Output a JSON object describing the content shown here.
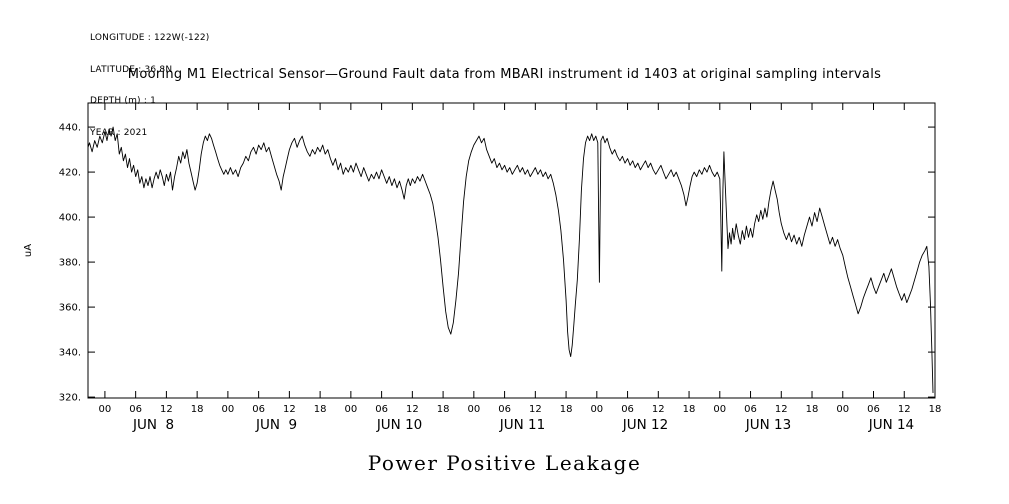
{
  "meta": {
    "longitude": "LONGITUDE : 122W(-122)",
    "latitude": "LATITUDE : 36.8N",
    "depth": "DEPTH (m) : 1",
    "year": "YEAR : 2021"
  },
  "title": "Mooring M1 Electrical Sensor—Ground Fault data from MBARI instrument id 1403 at original sampling intervals",
  "caption": "Power Positive Leakage",
  "chart_data": {
    "type": "line",
    "title": "Mooring M1 Electrical Sensor—Ground Fault data from MBARI instrument id 1403 at original sampling intervals",
    "xlabel_caption": "Power Positive Leakage",
    "ylabel": "uA",
    "line_color": "#000000",
    "grid": false,
    "legend": "none",
    "ylim": [
      319.6,
      450.7
    ],
    "xlim_hours": [
      -3.3,
      162
    ],
    "x_epoch": "hours since JUN 8 2021 00:00",
    "x_tick_step": 6,
    "x_tick_labels_cycle": [
      "00",
      "06",
      "12",
      "18"
    ],
    "y_ticks": [
      320,
      340,
      360,
      380,
      400,
      420,
      440
    ],
    "y_tick_labels": [
      "320.",
      "340.",
      "360.",
      "380.",
      "400.",
      "420.",
      "440."
    ],
    "day_labels": [
      {
        "label": "JUN  8",
        "hour": 9.5
      },
      {
        "label": "JUN  9",
        "hour": 33.5
      },
      {
        "label": "JUN 10",
        "hour": 57.5
      },
      {
        "label": "JUN 11",
        "hour": 81.5
      },
      {
        "label": "JUN 12",
        "hour": 105.5
      },
      {
        "label": "JUN 13",
        "hour": 129.5
      },
      {
        "label": "JUN 14",
        "hour": 153.5
      }
    ],
    "points": [
      [
        -3.3,
        431
      ],
      [
        -3,
        433
      ],
      [
        -2.5,
        429
      ],
      [
        -2,
        434
      ],
      [
        -1.5,
        431
      ],
      [
        -1,
        436
      ],
      [
        -0.5,
        433
      ],
      [
        0,
        438
      ],
      [
        0.4,
        434
      ],
      [
        0.8,
        439
      ],
      [
        1.2,
        436
      ],
      [
        1.6,
        440
      ],
      [
        2,
        434
      ],
      [
        2.4,
        437
      ],
      [
        2.8,
        428
      ],
      [
        3.2,
        431
      ],
      [
        3.6,
        425
      ],
      [
        4,
        428
      ],
      [
        4.4,
        422
      ],
      [
        4.8,
        426
      ],
      [
        5.2,
        420
      ],
      [
        5.6,
        423
      ],
      [
        6,
        418
      ],
      [
        6.4,
        421
      ],
      [
        6.8,
        415
      ],
      [
        7.2,
        418
      ],
      [
        7.6,
        413
      ],
      [
        8,
        417
      ],
      [
        8.4,
        414
      ],
      [
        8.8,
        418
      ],
      [
        9.2,
        413
      ],
      [
        9.6,
        417
      ],
      [
        10,
        420
      ],
      [
        10.4,
        417
      ],
      [
        10.8,
        421
      ],
      [
        11.2,
        418
      ],
      [
        11.6,
        414
      ],
      [
        12,
        419
      ],
      [
        12.4,
        416
      ],
      [
        12.8,
        420
      ],
      [
        13.2,
        412
      ],
      [
        13.6,
        418
      ],
      [
        14,
        422
      ],
      [
        14.4,
        427
      ],
      [
        14.8,
        424
      ],
      [
        15.2,
        429
      ],
      [
        15.6,
        426
      ],
      [
        16,
        430
      ],
      [
        16.4,
        424
      ],
      [
        16.8,
        420
      ],
      [
        17.2,
        416
      ],
      [
        17.6,
        412
      ],
      [
        18,
        415
      ],
      [
        18.4,
        421
      ],
      [
        18.8,
        428
      ],
      [
        19.2,
        433
      ],
      [
        19.6,
        436
      ],
      [
        20,
        434
      ],
      [
        20.4,
        437
      ],
      [
        20.8,
        435
      ],
      [
        21.2,
        432
      ],
      [
        21.6,
        429
      ],
      [
        22,
        426
      ],
      [
        22.4,
        423
      ],
      [
        22.8,
        421
      ],
      [
        23.2,
        419
      ],
      [
        23.6,
        421
      ],
      [
        24,
        419
      ],
      [
        24.5,
        422
      ],
      [
        25,
        419
      ],
      [
        25.5,
        421
      ],
      [
        26,
        418
      ],
      [
        26.5,
        422
      ],
      [
        27,
        424
      ],
      [
        27.5,
        427
      ],
      [
        28,
        425
      ],
      [
        28.5,
        429
      ],
      [
        29,
        431
      ],
      [
        29.5,
        428
      ],
      [
        30,
        432
      ],
      [
        30.5,
        430
      ],
      [
        31,
        433
      ],
      [
        31.5,
        429
      ],
      [
        32,
        431
      ],
      [
        32.5,
        427
      ],
      [
        33,
        423
      ],
      [
        33.5,
        419
      ],
      [
        34,
        416
      ],
      [
        34.4,
        412
      ],
      [
        34.8,
        418
      ],
      [
        35.2,
        422
      ],
      [
        35.6,
        426
      ],
      [
        36,
        430
      ],
      [
        36.5,
        433
      ],
      [
        37,
        435
      ],
      [
        37.5,
        431
      ],
      [
        38,
        434
      ],
      [
        38.5,
        436
      ],
      [
        39,
        432
      ],
      [
        39.5,
        429
      ],
      [
        40,
        427
      ],
      [
        40.5,
        430
      ],
      [
        41,
        428
      ],
      [
        41.5,
        431
      ],
      [
        42,
        429
      ],
      [
        42.5,
        432
      ],
      [
        43,
        428
      ],
      [
        43.5,
        430
      ],
      [
        44,
        426
      ],
      [
        44.5,
        423
      ],
      [
        45,
        426
      ],
      [
        45.5,
        421
      ],
      [
        46,
        424
      ],
      [
        46.5,
        419
      ],
      [
        47,
        422
      ],
      [
        47.5,
        420
      ],
      [
        48,
        423
      ],
      [
        48.5,
        420
      ],
      [
        49,
        424
      ],
      [
        49.5,
        421
      ],
      [
        50,
        418
      ],
      [
        50.5,
        422
      ],
      [
        51,
        419
      ],
      [
        51.5,
        416
      ],
      [
        52,
        419
      ],
      [
        52.5,
        417
      ],
      [
        53,
        420
      ],
      [
        53.5,
        417
      ],
      [
        54,
        421
      ],
      [
        54.5,
        418
      ],
      [
        55,
        415
      ],
      [
        55.5,
        418
      ],
      [
        56,
        414
      ],
      [
        56.5,
        417
      ],
      [
        57,
        413
      ],
      [
        57.5,
        416
      ],
      [
        58,
        412
      ],
      [
        58.4,
        408
      ],
      [
        58.8,
        414
      ],
      [
        59.2,
        417
      ],
      [
        59.6,
        414
      ],
      [
        60,
        417
      ],
      [
        60.5,
        415
      ],
      [
        61,
        418
      ],
      [
        61.5,
        416
      ],
      [
        62,
        419
      ],
      [
        62.5,
        416
      ],
      [
        63,
        413
      ],
      [
        63.5,
        410
      ],
      [
        64,
        406
      ],
      [
        64.5,
        399
      ],
      [
        65,
        391
      ],
      [
        65.5,
        381
      ],
      [
        66,
        369
      ],
      [
        66.5,
        358
      ],
      [
        67,
        351
      ],
      [
        67.5,
        348
      ],
      [
        68,
        353
      ],
      [
        68.5,
        363
      ],
      [
        69,
        375
      ],
      [
        69.5,
        391
      ],
      [
        70,
        407
      ],
      [
        70.5,
        418
      ],
      [
        71,
        425
      ],
      [
        71.5,
        429
      ],
      [
        72,
        432
      ],
      [
        72.5,
        434
      ],
      [
        73,
        436
      ],
      [
        73.5,
        433
      ],
      [
        74,
        435
      ],
      [
        74.5,
        430
      ],
      [
        75,
        427
      ],
      [
        75.5,
        424
      ],
      [
        76,
        426
      ],
      [
        76.5,
        422
      ],
      [
        77,
        424
      ],
      [
        77.5,
        421
      ],
      [
        78,
        423
      ],
      [
        78.5,
        420
      ],
      [
        79,
        422
      ],
      [
        79.5,
        419
      ],
      [
        80,
        421
      ],
      [
        80.5,
        423
      ],
      [
        81,
        420
      ],
      [
        81.5,
        422
      ],
      [
        82,
        419
      ],
      [
        82.5,
        421
      ],
      [
        83,
        418
      ],
      [
        83.5,
        420
      ],
      [
        84,
        422
      ],
      [
        84.5,
        419
      ],
      [
        85,
        421
      ],
      [
        85.5,
        418
      ],
      [
        86,
        420
      ],
      [
        86.5,
        417
      ],
      [
        87,
        419
      ],
      [
        87.5,
        415
      ],
      [
        88,
        410
      ],
      [
        88.5,
        403
      ],
      [
        89,
        394
      ],
      [
        89.5,
        381
      ],
      [
        90,
        363
      ],
      [
        90.3,
        349
      ],
      [
        90.6,
        341
      ],
      [
        90.9,
        338
      ],
      [
        91.2,
        343
      ],
      [
        91.5,
        352
      ],
      [
        91.8,
        361
      ],
      [
        92.2,
        372
      ],
      [
        92.6,
        390
      ],
      [
        93,
        412
      ],
      [
        93.4,
        426
      ],
      [
        93.8,
        433
      ],
      [
        94.2,
        436
      ],
      [
        94.6,
        434
      ],
      [
        95,
        437
      ],
      [
        95.4,
        434
      ],
      [
        95.8,
        436
      ],
      [
        96.2,
        433
      ],
      [
        96.5,
        371
      ],
      [
        96.8,
        434
      ],
      [
        97.2,
        436
      ],
      [
        97.6,
        433
      ],
      [
        98,
        435
      ],
      [
        98.5,
        431
      ],
      [
        99,
        428
      ],
      [
        99.5,
        430
      ],
      [
        100,
        427
      ],
      [
        100.5,
        425
      ],
      [
        101,
        427
      ],
      [
        101.5,
        424
      ],
      [
        102,
        426
      ],
      [
        102.5,
        423
      ],
      [
        103,
        425
      ],
      [
        103.5,
        422
      ],
      [
        104,
        424
      ],
      [
        104.5,
        421
      ],
      [
        105,
        423
      ],
      [
        105.5,
        425
      ],
      [
        106,
        422
      ],
      [
        106.5,
        424
      ],
      [
        107,
        421
      ],
      [
        107.5,
        419
      ],
      [
        108,
        421
      ],
      [
        108.5,
        423
      ],
      [
        109,
        420
      ],
      [
        109.5,
        417
      ],
      [
        110,
        419
      ],
      [
        110.5,
        421
      ],
      [
        111,
        418
      ],
      [
        111.5,
        420
      ],
      [
        112,
        417
      ],
      [
        112.5,
        414
      ],
      [
        113,
        410
      ],
      [
        113.4,
        405
      ],
      [
        113.8,
        409
      ],
      [
        114.2,
        414
      ],
      [
        114.6,
        418
      ],
      [
        115,
        420
      ],
      [
        115.5,
        418
      ],
      [
        116,
        421
      ],
      [
        116.5,
        419
      ],
      [
        117,
        422
      ],
      [
        117.5,
        420
      ],
      [
        118,
        423
      ],
      [
        118.5,
        420
      ],
      [
        119,
        418
      ],
      [
        119.5,
        420
      ],
      [
        120,
        417
      ],
      [
        120.2,
        400
      ],
      [
        120.4,
        376
      ],
      [
        120.6,
        412
      ],
      [
        120.8,
        429
      ],
      [
        121,
        418
      ],
      [
        121.3,
        401
      ],
      [
        121.6,
        386
      ],
      [
        121.9,
        393
      ],
      [
        122.2,
        388
      ],
      [
        122.5,
        395
      ],
      [
        122.8,
        390
      ],
      [
        123.2,
        397
      ],
      [
        123.6,
        392
      ],
      [
        124,
        388
      ],
      [
        124.4,
        394
      ],
      [
        124.8,
        390
      ],
      [
        125.2,
        396
      ],
      [
        125.6,
        391
      ],
      [
        126,
        395
      ],
      [
        126.4,
        391
      ],
      [
        126.8,
        397
      ],
      [
        127.2,
        401
      ],
      [
        127.6,
        398
      ],
      [
        128,
        403
      ],
      [
        128.4,
        399
      ],
      [
        128.8,
        404
      ],
      [
        129.2,
        400
      ],
      [
        129.6,
        407
      ],
      [
        130,
        412
      ],
      [
        130.4,
        416
      ],
      [
        130.8,
        412
      ],
      [
        131.2,
        408
      ],
      [
        131.6,
        402
      ],
      [
        132,
        397
      ],
      [
        132.5,
        393
      ],
      [
        133,
        390
      ],
      [
        133.5,
        393
      ],
      [
        134,
        389
      ],
      [
        134.5,
        392
      ],
      [
        135,
        388
      ],
      [
        135.5,
        391
      ],
      [
        136,
        387
      ],
      [
        136.5,
        392
      ],
      [
        137,
        396
      ],
      [
        137.5,
        400
      ],
      [
        138,
        396
      ],
      [
        138.5,
        402
      ],
      [
        139,
        398
      ],
      [
        139.5,
        404
      ],
      [
        140,
        400
      ],
      [
        140.5,
        396
      ],
      [
        141,
        392
      ],
      [
        141.5,
        388
      ],
      [
        142,
        391
      ],
      [
        142.5,
        387
      ],
      [
        143,
        390
      ],
      [
        143.5,
        386
      ],
      [
        144,
        383
      ],
      [
        144.5,
        378
      ],
      [
        145,
        373
      ],
      [
        145.5,
        369
      ],
      [
        146,
        365
      ],
      [
        146.5,
        361
      ],
      [
        147,
        357
      ],
      [
        147.5,
        360
      ],
      [
        148,
        364
      ],
      [
        148.5,
        367
      ],
      [
        149,
        370
      ],
      [
        149.5,
        373
      ],
      [
        150,
        369
      ],
      [
        150.5,
        366
      ],
      [
        151,
        369
      ],
      [
        151.5,
        372
      ],
      [
        152,
        375
      ],
      [
        152.5,
        371
      ],
      [
        153,
        374
      ],
      [
        153.5,
        377
      ],
      [
        154,
        373
      ],
      [
        154.5,
        369
      ],
      [
        155,
        366
      ],
      [
        155.5,
        363
      ],
      [
        156,
        366
      ],
      [
        156.5,
        362
      ],
      [
        157,
        365
      ],
      [
        157.5,
        368
      ],
      [
        158,
        372
      ],
      [
        158.5,
        376
      ],
      [
        159,
        380
      ],
      [
        159.5,
        383
      ],
      [
        160,
        385
      ],
      [
        160.4,
        387
      ],
      [
        160.8,
        378
      ],
      [
        161.1,
        362
      ],
      [
        161.4,
        340
      ],
      [
        161.6,
        322
      ]
    ]
  }
}
